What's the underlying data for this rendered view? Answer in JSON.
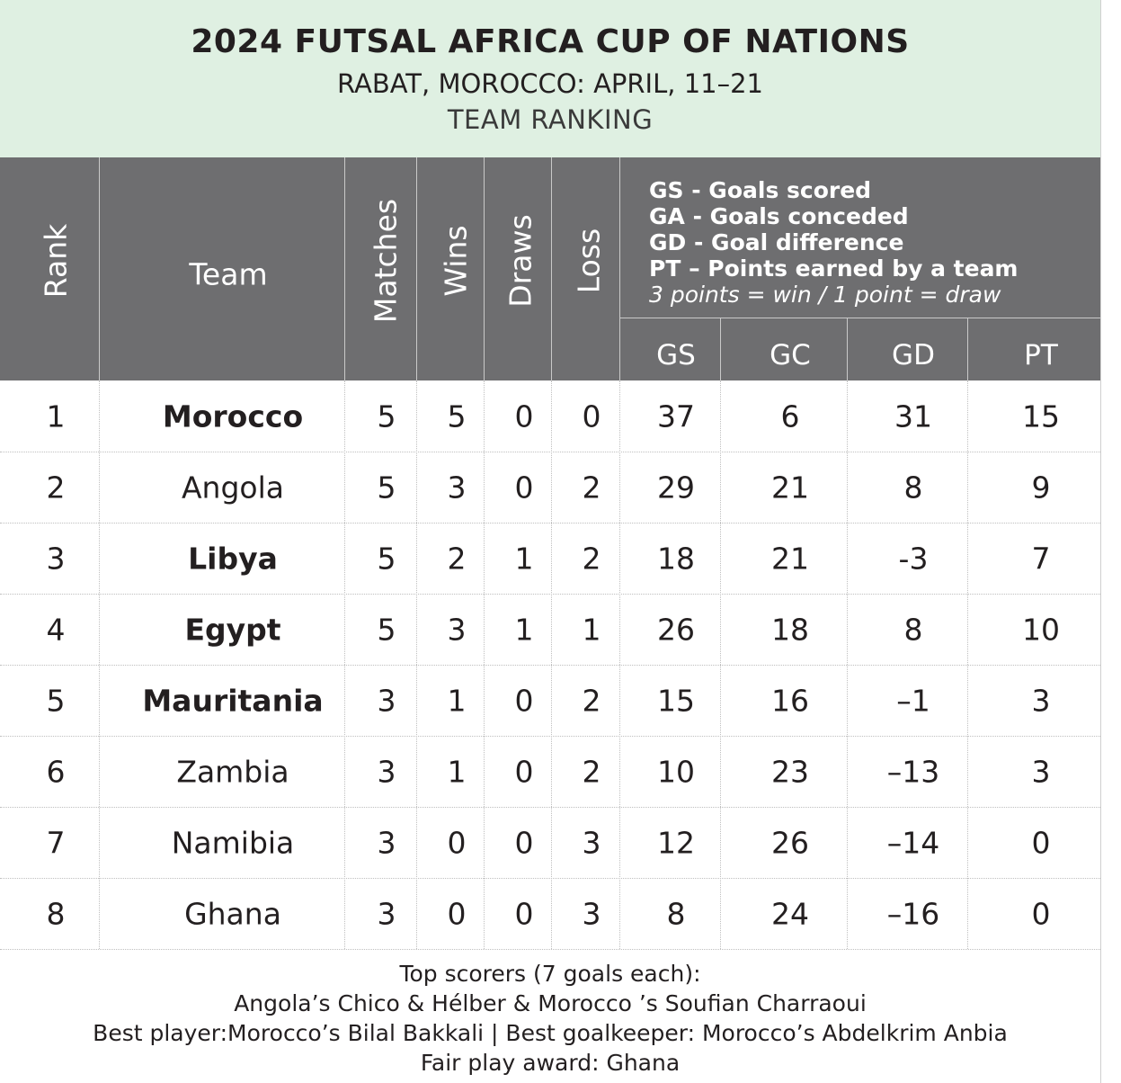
{
  "header": {
    "title": "2024 FUTSAL AFRICA CUP OF NATIONS",
    "subtitle": "RABAT, MOROCCO: APRIL, 11–21",
    "label": "TEAM RANKING"
  },
  "columns": {
    "rank": "Rank",
    "team": "Team",
    "matches": "Matches",
    "wins": "Wins",
    "draws": "Draws",
    "loss": "Loss",
    "gs": "GS",
    "gc": "GC",
    "gd": "GD",
    "pt": "PT"
  },
  "legend": {
    "gs": "GS - Goals scored",
    "ga": "GA - Goals conceded",
    "gd": "GD - Goal difference",
    "pt": "PT – Points earned by a team",
    "points_note": "3 points = win / 1 point = draw"
  },
  "rows": [
    {
      "rank": "1",
      "team": "Morocco",
      "bold": true,
      "matches": "5",
      "wins": "5",
      "draws": "0",
      "loss": "0",
      "gs": "37",
      "gc": "6",
      "gd": "31",
      "pt": "15"
    },
    {
      "rank": "2",
      "team": "Angola",
      "bold": false,
      "matches": "5",
      "wins": "3",
      "draws": "0",
      "loss": "2",
      "gs": "29",
      "gc": "21",
      "gd": "8",
      "pt": "9"
    },
    {
      "rank": "3",
      "team": "Libya",
      "bold": true,
      "matches": "5",
      "wins": "2",
      "draws": "1",
      "loss": "2",
      "gs": "18",
      "gc": "21",
      "gd": "-3",
      "pt": "7"
    },
    {
      "rank": "4",
      "team": "Egypt",
      "bold": true,
      "matches": "5",
      "wins": "3",
      "draws": "1",
      "loss": "1",
      "gs": "26",
      "gc": "18",
      "gd": "8",
      "pt": "10"
    },
    {
      "rank": "5",
      "team": "Mauritania",
      "bold": true,
      "matches": "3",
      "wins": "1",
      "draws": "0",
      "loss": "2",
      "gs": "15",
      "gc": "16",
      "gd": "–1",
      "pt": "3"
    },
    {
      "rank": "6",
      "team": "Zambia",
      "bold": false,
      "matches": "3",
      "wins": "1",
      "draws": "0",
      "loss": "2",
      "gs": "10",
      "gc": "23",
      "gd": "–13",
      "pt": "3"
    },
    {
      "rank": "7",
      "team": "Namibia",
      "bold": false,
      "matches": "3",
      "wins": "0",
      "draws": "0",
      "loss": "3",
      "gs": "12",
      "gc": "26",
      "gd": "–14",
      "pt": "0"
    },
    {
      "rank": "8",
      "team": "Ghana",
      "bold": false,
      "matches": "3",
      "wins": "0",
      "draws": "0",
      "loss": "3",
      "gs": "8",
      "gc": "24",
      "gd": "–16",
      "pt": "0"
    }
  ],
  "footer": {
    "line1": "Top scorers (7 goals each):",
    "line2": "Angola’s Chico & Hélber & Morocco ’s Soufian Charraoui",
    "line3": "Best player:Morocco’s Bilal Bakkali | Best goalkeeper: Morocco’s Abdelkrim Anbia",
    "line4": "Fair play award: Ghana"
  }
}
